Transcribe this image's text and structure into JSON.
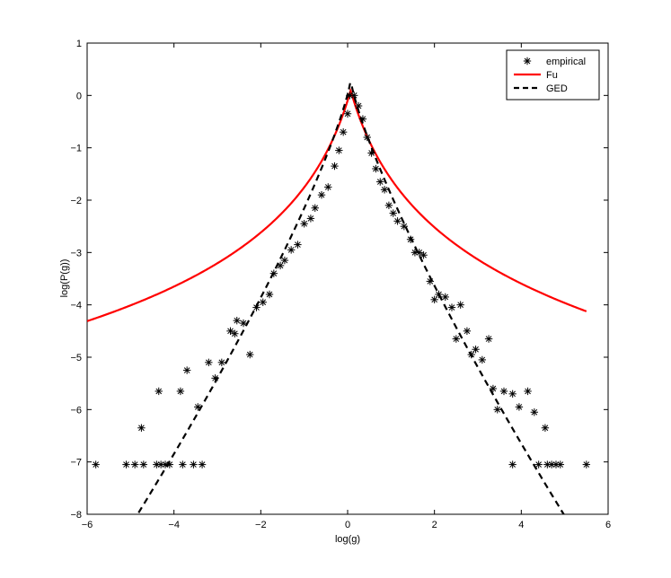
{
  "chart_data": {
    "type": "line",
    "title": "",
    "xlabel": "log(g)",
    "ylabel": "log(P(g))",
    "xlim": [
      -6,
      6
    ],
    "ylim": [
      -8,
      1
    ],
    "xticks": [
      -6,
      -4,
      -2,
      0,
      2,
      4,
      6
    ],
    "yticks": [
      1,
      0,
      -1,
      -2,
      -3,
      -4,
      -5,
      -6,
      -7,
      -8
    ],
    "xtick_labels": [
      "−6",
      "−4",
      "−2",
      "0",
      "2",
      "4",
      "6"
    ],
    "ytick_labels": [
      "1",
      "0",
      "−1",
      "−2",
      "−3",
      "−4",
      "−5",
      "−6",
      "−7",
      "−8"
    ],
    "grid": false,
    "legend_position": "top-right",
    "series": [
      {
        "name": "empirical",
        "style": "markers-asterisk",
        "color": "#000000",
        "points": [
          [
            -5.8,
            -7.05
          ],
          [
            -5.1,
            -7.05
          ],
          [
            -4.9,
            -7.05
          ],
          [
            -4.7,
            -7.05
          ],
          [
            -4.4,
            -7.05
          ],
          [
            -4.3,
            -7.05
          ],
          [
            -4.2,
            -7.05
          ],
          [
            -4.1,
            -7.05
          ],
          [
            -3.8,
            -7.05
          ],
          [
            -3.55,
            -7.05
          ],
          [
            -3.35,
            -7.05
          ],
          [
            -4.75,
            -6.35
          ],
          [
            -4.35,
            -5.65
          ],
          [
            -3.85,
            -5.65
          ],
          [
            -3.7,
            -5.25
          ],
          [
            -3.45,
            -5.95
          ],
          [
            -3.2,
            -5.1
          ],
          [
            -3.05,
            -5.4
          ],
          [
            -2.9,
            -5.1
          ],
          [
            -2.7,
            -4.5
          ],
          [
            -2.55,
            -4.3
          ],
          [
            -2.6,
            -4.55
          ],
          [
            -2.4,
            -4.35
          ],
          [
            -2.25,
            -4.95
          ],
          [
            -2.1,
            -4.05
          ],
          [
            -1.95,
            -3.95
          ],
          [
            -1.8,
            -3.8
          ],
          [
            -1.7,
            -3.4
          ],
          [
            -1.55,
            -3.25
          ],
          [
            -1.45,
            -3.15
          ],
          [
            -1.3,
            -2.95
          ],
          [
            -1.15,
            -2.85
          ],
          [
            -1.0,
            -2.45
          ],
          [
            -0.85,
            -2.35
          ],
          [
            -0.75,
            -2.15
          ],
          [
            -0.6,
            -1.9
          ],
          [
            -0.45,
            -1.75
          ],
          [
            -0.3,
            -1.35
          ],
          [
            -0.2,
            -1.05
          ],
          [
            -0.1,
            -0.7
          ],
          [
            0.0,
            -0.35
          ],
          [
            0.05,
            0.0
          ],
          [
            0.15,
            0.0
          ],
          [
            0.25,
            -0.2
          ],
          [
            0.35,
            -0.45
          ],
          [
            0.45,
            -0.8
          ],
          [
            0.55,
            -1.1
          ],
          [
            0.65,
            -1.4
          ],
          [
            0.75,
            -1.65
          ],
          [
            0.85,
            -1.8
          ],
          [
            0.95,
            -2.1
          ],
          [
            1.05,
            -2.25
          ],
          [
            1.15,
            -2.4
          ],
          [
            1.3,
            -2.5
          ],
          [
            1.45,
            -2.75
          ],
          [
            1.55,
            -3.0
          ],
          [
            1.65,
            -3.0
          ],
          [
            1.75,
            -3.05
          ],
          [
            1.9,
            -3.55
          ],
          [
            2.0,
            -3.9
          ],
          [
            2.1,
            -3.8
          ],
          [
            2.25,
            -3.85
          ],
          [
            2.4,
            -4.05
          ],
          [
            2.5,
            -4.65
          ],
          [
            2.6,
            -4.0
          ],
          [
            2.75,
            -4.5
          ],
          [
            2.85,
            -4.95
          ],
          [
            2.95,
            -4.85
          ],
          [
            3.1,
            -5.05
          ],
          [
            3.25,
            -4.65
          ],
          [
            3.35,
            -5.6
          ],
          [
            3.45,
            -6.0
          ],
          [
            3.6,
            -5.65
          ],
          [
            3.8,
            -5.7
          ],
          [
            3.95,
            -5.95
          ],
          [
            4.15,
            -5.65
          ],
          [
            4.3,
            -6.05
          ],
          [
            4.55,
            -6.35
          ],
          [
            3.8,
            -7.05
          ],
          [
            4.4,
            -7.05
          ],
          [
            4.6,
            -7.05
          ],
          [
            4.7,
            -7.05
          ],
          [
            4.8,
            -7.05
          ],
          [
            4.9,
            -7.05
          ],
          [
            5.5,
            -7.05
          ]
        ]
      },
      {
        "name": "Fu",
        "style": "solid",
        "color": "#ff0000",
        "params": {
          "A": 0.1,
          "b": 1.2,
          "x0": 0.07
        }
      },
      {
        "name": "GED",
        "style": "dashed",
        "color": "#000000",
        "params": {
          "A": 0.3,
          "c": 1.5,
          "nu": 0.8,
          "x0": 0.07
        }
      }
    ]
  }
}
